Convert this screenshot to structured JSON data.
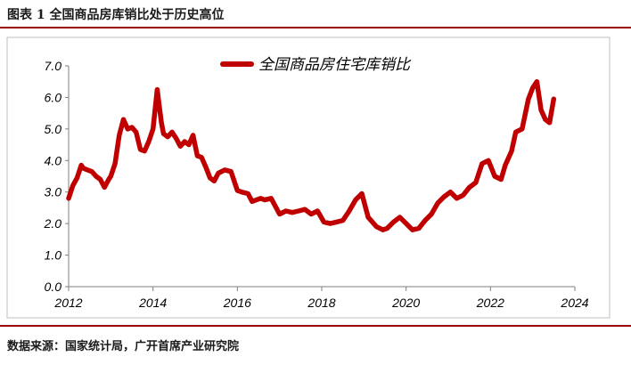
{
  "figure": {
    "title": "图表 1 全国商品房库销比处于历史高位",
    "source": "数据来源：国家统计局，广开首席产业研究院"
  },
  "colors": {
    "series": "#c00000",
    "axis": "#7f7f7f",
    "rule": "#9a0000",
    "frame": "#bfbfbf"
  },
  "chart_data": {
    "type": "line",
    "title": "",
    "xlabel": "",
    "ylabel": "",
    "xlim": [
      2012,
      2024
    ],
    "ylim": [
      0,
      7
    ],
    "x_ticks": [
      2012,
      2014,
      2016,
      2018,
      2020,
      2022,
      2024
    ],
    "y_ticks": [
      0.0,
      1.0,
      2.0,
      3.0,
      4.0,
      5.0,
      6.0,
      7.0
    ],
    "y_tick_labels": [
      "0.0",
      "1.0",
      "2.0",
      "3.0",
      "4.0",
      "5.0",
      "6.0",
      "7.0"
    ],
    "grid": false,
    "legend": "top",
    "series": [
      {
        "name": "全国商品房住宅库销比",
        "color": "#c00000",
        "x": [
          2012.0,
          2012.1,
          2012.2,
          2012.3,
          2012.35,
          2012.45,
          2012.55,
          2012.65,
          2012.75,
          2012.85,
          2012.95,
          2013.0,
          2013.1,
          2013.2,
          2013.3,
          2013.4,
          2013.5,
          2013.6,
          2013.7,
          2013.8,
          2013.9,
          2014.0,
          2014.1,
          2014.2,
          2014.25,
          2014.35,
          2014.45,
          2014.55,
          2014.65,
          2014.75,
          2014.85,
          2014.95,
          2015.05,
          2015.15,
          2015.25,
          2015.35,
          2015.45,
          2015.55,
          2015.7,
          2015.85,
          2016.0,
          2016.1,
          2016.25,
          2016.35,
          2016.45,
          2016.55,
          2016.65,
          2016.8,
          2017.0,
          2017.15,
          2017.3,
          2017.45,
          2017.6,
          2017.75,
          2017.9,
          2018.05,
          2018.2,
          2018.35,
          2018.5,
          2018.65,
          2018.8,
          2018.95,
          2019.1,
          2019.3,
          2019.45,
          2019.55,
          2019.7,
          2019.85,
          2020.0,
          2020.15,
          2020.3,
          2020.45,
          2020.6,
          2020.75,
          2020.9,
          2021.05,
          2021.2,
          2021.35,
          2021.5,
          2021.65,
          2021.8,
          2021.95,
          2022.1,
          2022.25,
          2022.35,
          2022.5,
          2022.6,
          2022.75,
          2022.9,
          2023.0,
          2023.1,
          2023.2,
          2023.3,
          2023.4,
          2023.5
        ],
        "values": [
          2.8,
          3.2,
          3.45,
          3.85,
          3.75,
          3.7,
          3.65,
          3.5,
          3.4,
          3.15,
          3.4,
          3.5,
          3.9,
          4.8,
          5.3,
          5.0,
          5.05,
          4.9,
          4.35,
          4.3,
          4.6,
          5.0,
          6.25,
          5.2,
          4.85,
          4.75,
          4.9,
          4.7,
          4.45,
          4.6,
          4.5,
          4.8,
          4.15,
          4.1,
          3.8,
          3.45,
          3.35,
          3.6,
          3.7,
          3.65,
          3.05,
          3.0,
          2.95,
          2.7,
          2.75,
          2.8,
          2.75,
          2.8,
          2.3,
          2.4,
          2.35,
          2.4,
          2.45,
          2.3,
          2.4,
          2.05,
          2.0,
          2.05,
          2.1,
          2.4,
          2.75,
          2.95,
          2.2,
          1.9,
          1.8,
          1.85,
          2.05,
          2.2,
          2.0,
          1.8,
          1.85,
          2.1,
          2.3,
          2.65,
          2.85,
          3.0,
          2.8,
          2.9,
          3.15,
          3.3,
          3.9,
          4.0,
          3.5,
          3.4,
          3.85,
          4.3,
          4.9,
          5.0,
          5.95,
          6.3,
          6.5,
          5.6,
          5.3,
          5.2,
          5.95
        ]
      }
    ]
  }
}
